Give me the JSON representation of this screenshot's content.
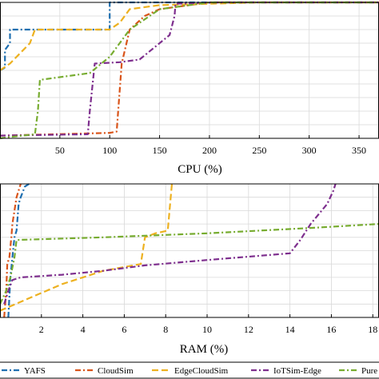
{
  "series_styles": [
    {
      "name": "YAFS",
      "color": "#1f6fb0",
      "dash": "7,3,2,3"
    },
    {
      "name": "CloudSim",
      "color": "#d9541a",
      "dash": "7,3,2,3"
    },
    {
      "name": "EdgeCloudSim",
      "color": "#edb120",
      "dash": "8,4"
    },
    {
      "name": "IoTSim-Edge",
      "color": "#7e2f8e",
      "dash": "7,3,2,3"
    },
    {
      "name": "Pure",
      "color": "#77ac30",
      "dash": "7,3,2,3"
    }
  ],
  "chart_data": [
    {
      "type": "line",
      "xlabel": "CPU (%)",
      "ylabel": "",
      "xlim": [
        -10,
        370
      ],
      "ylim": [
        0,
        1
      ],
      "xticks": [
        50,
        100,
        150,
        200,
        250,
        300,
        350
      ],
      "grid": true,
      "series": [
        {
          "name": "YAFS",
          "x": [
            -10,
            -5,
            -5,
            0,
            0,
            100,
            100,
            150,
            370
          ],
          "y": [
            0.5,
            0.52,
            0.65,
            0.7,
            0.8,
            0.8,
            1.0,
            1.0,
            1.0
          ]
        },
        {
          "name": "CloudSim",
          "x": [
            -10,
            100,
            107,
            112,
            120,
            135,
            150,
            200,
            370
          ],
          "y": [
            0.02,
            0.04,
            0.05,
            0.55,
            0.8,
            0.9,
            0.95,
            1.0,
            1.0
          ]
        },
        {
          "name": "EdgeCloudSim",
          "x": [
            -10,
            0,
            20,
            25,
            100,
            110,
            120,
            150,
            250,
            370
          ],
          "y": [
            0.5,
            0.55,
            0.7,
            0.8,
            0.8,
            0.85,
            0.95,
            0.98,
            1.0,
            1.0
          ]
        },
        {
          "name": "IoTSim-Edge",
          "x": [
            -10,
            78,
            80,
            85,
            110,
            130,
            160,
            165,
            166,
            210,
            370
          ],
          "y": [
            0.02,
            0.03,
            0.2,
            0.55,
            0.56,
            0.58,
            0.76,
            0.9,
            0.99,
            1.0,
            1.0
          ]
        },
        {
          "name": "Pure",
          "x": [
            -10,
            0,
            25,
            28,
            30,
            80,
            100,
            120,
            150,
            200,
            370
          ],
          "y": [
            0.0,
            0.01,
            0.03,
            0.2,
            0.43,
            0.48,
            0.6,
            0.8,
            0.95,
            1.0,
            1.0
          ]
        }
      ]
    },
    {
      "type": "line",
      "xlabel": "RAM (%)",
      "ylabel": "",
      "xlim": [
        0,
        18.3
      ],
      "ylim": [
        0,
        1
      ],
      "xticks": [
        2,
        4,
        6,
        8,
        10,
        12,
        14,
        16,
        18
      ],
      "grid": true,
      "series": [
        {
          "name": "YAFS",
          "x": [
            0.4,
            0.5,
            0.6,
            0.7,
            0.8,
            0.9,
            1.0,
            1.2,
            1.4
          ],
          "y": [
            0.0,
            0.3,
            0.45,
            0.6,
            0.65,
            0.85,
            0.9,
            0.98,
            1.0
          ]
        },
        {
          "name": "CloudSim",
          "x": [
            0.2,
            0.3,
            0.35,
            0.45,
            0.55,
            0.6,
            0.7,
            0.8,
            1.0
          ],
          "y": [
            0.0,
            0.2,
            0.4,
            0.45,
            0.6,
            0.7,
            0.8,
            0.9,
            1.0
          ]
        },
        {
          "name": "EdgeCloudSim",
          "x": [
            0.0,
            1.5,
            3.0,
            5.0,
            6.8,
            7.0,
            7.5,
            8.1,
            8.3
          ],
          "y": [
            0.05,
            0.15,
            0.25,
            0.35,
            0.4,
            0.6,
            0.63,
            0.65,
            1.0
          ]
        },
        {
          "name": "IoTSim-Edge",
          "x": [
            0.2,
            0.4,
            0.6,
            1.0,
            3.0,
            5.0,
            7.0,
            10.0,
            14.0,
            14.5,
            15.0,
            15.8,
            16.1,
            16.2
          ],
          "y": [
            0.1,
            0.2,
            0.28,
            0.3,
            0.32,
            0.35,
            0.39,
            0.43,
            0.48,
            0.58,
            0.7,
            0.85,
            0.95,
            1.0
          ]
        },
        {
          "name": "Pure",
          "x": [
            0.0,
            0.3,
            0.5,
            0.7,
            0.8,
            5.0,
            10.0,
            15.0,
            18.3
          ],
          "y": [
            0.1,
            0.2,
            0.3,
            0.45,
            0.58,
            0.6,
            0.63,
            0.67,
            0.7
          ]
        }
      ]
    }
  ]
}
